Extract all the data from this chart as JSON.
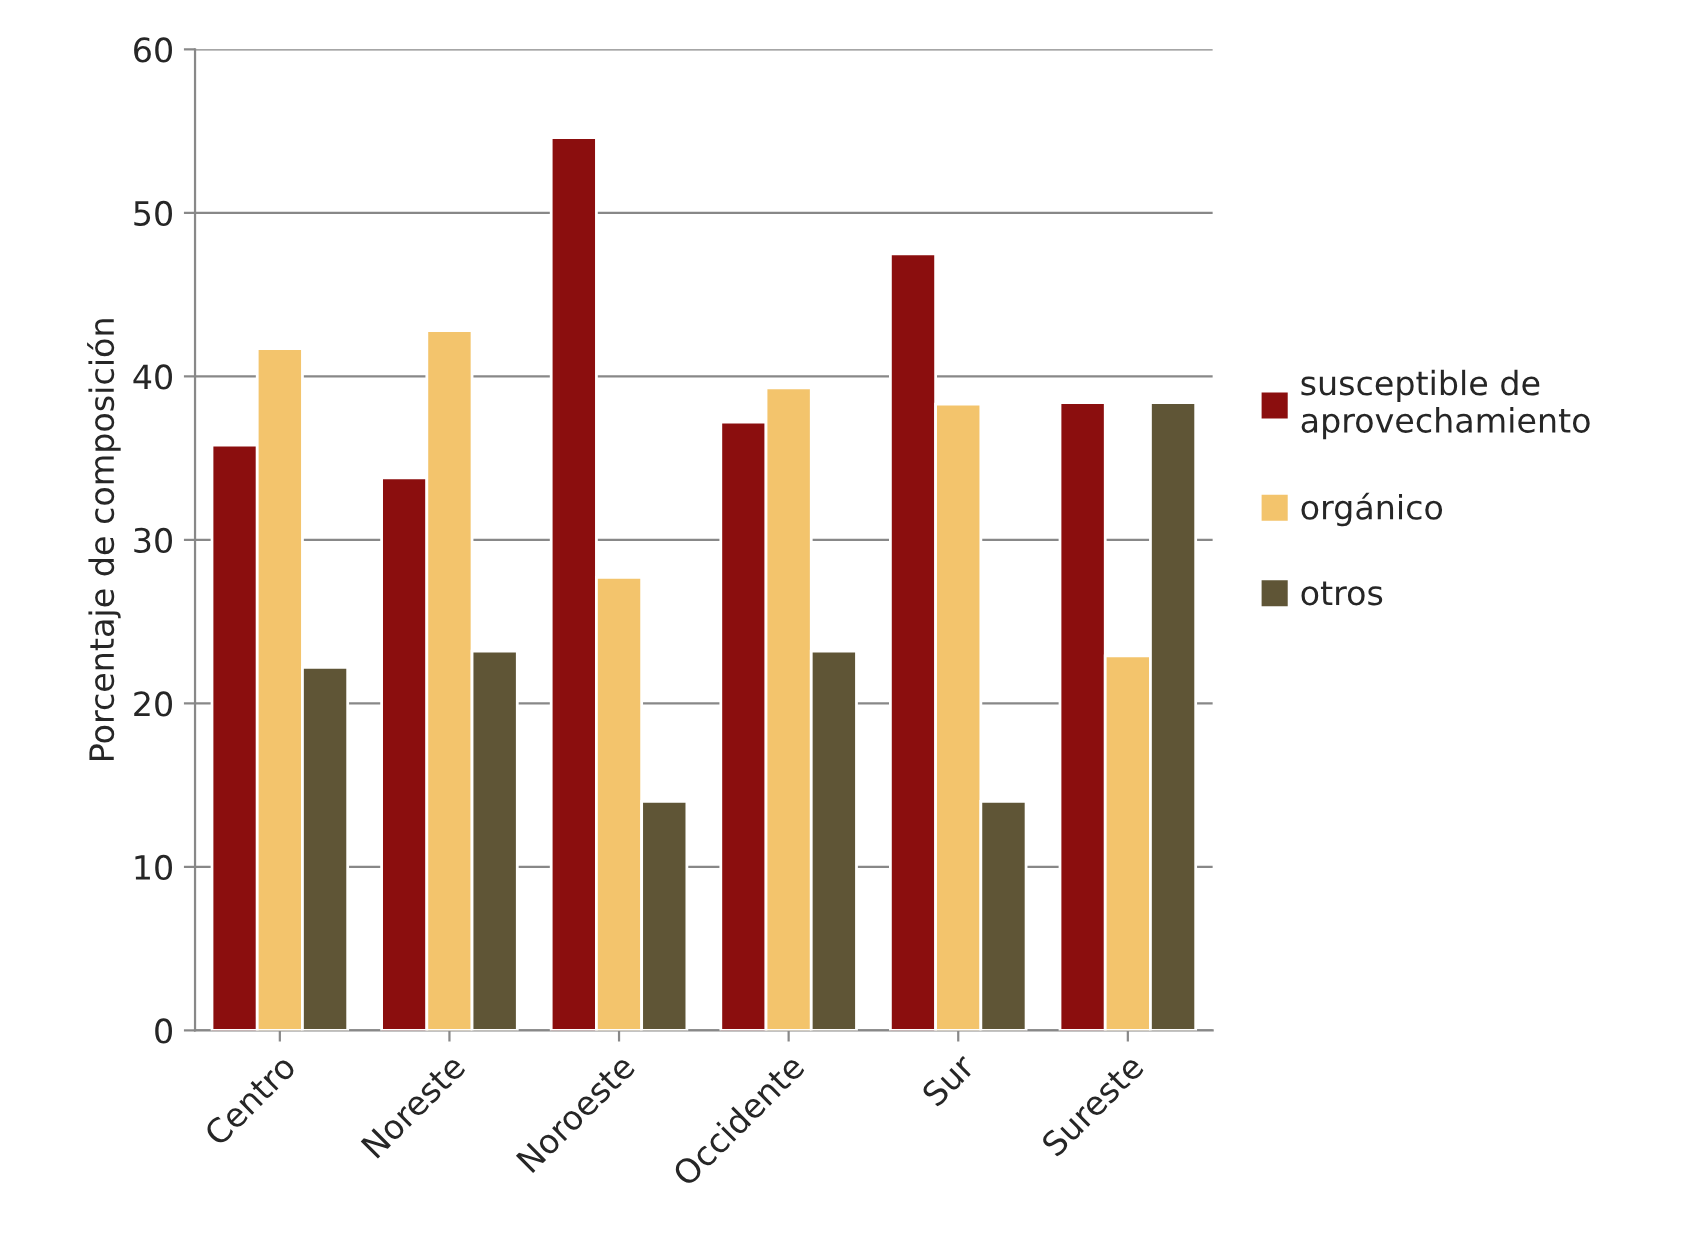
{
  "chart_data": {
    "type": "bar",
    "ylabel": "Porcentaje de composición",
    "categories": [
      "Centro",
      "Noreste",
      "Noroeste",
      "Occidente",
      "Sur",
      "Sureste"
    ],
    "series": [
      {
        "name": "susceptible de\naprovechamiento",
        "color": "#8b0e0e",
        "values": [
          35.8,
          33.8,
          54.6,
          37.2,
          47.5,
          38.4
        ]
      },
      {
        "name": "orgánico",
        "color": "#f3c46c",
        "values": [
          41.7,
          42.8,
          27.7,
          39.3,
          38.3,
          22.9
        ]
      },
      {
        "name": "otros",
        "color": "#5f5536",
        "values": [
          22.2,
          23.2,
          14.0,
          23.2,
          14.0,
          38.4
        ]
      }
    ],
    "ylim": [
      0,
      60
    ],
    "yticks": [
      0,
      10,
      20,
      30,
      40,
      50,
      60
    ],
    "grid": "y",
    "legend": "right"
  }
}
